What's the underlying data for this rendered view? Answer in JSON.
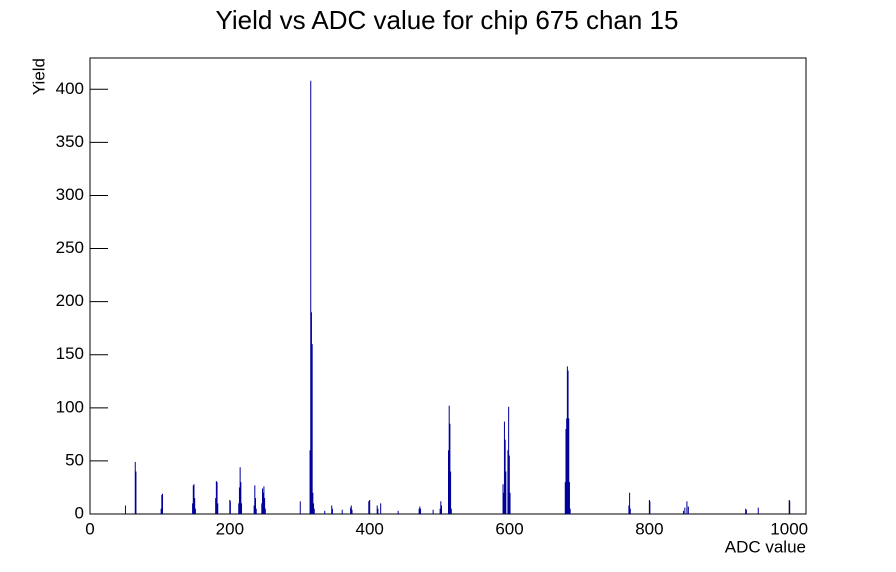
{
  "chart_data": {
    "type": "histogram",
    "title": "Yield vs ADC value for chip 675 chan 15",
    "x_label": "ADC value",
    "y_label": "Yield",
    "color": "#000099",
    "bin_width": 1,
    "x": [
      50,
      64,
      65,
      101,
      102,
      103,
      146,
      147,
      148,
      149,
      150,
      179,
      180,
      181,
      182,
      200,
      212,
      213,
      214,
      215,
      216,
      234,
      235,
      236,
      237,
      245,
      246,
      247,
      248,
      249,
      250,
      300,
      314,
      315,
      316,
      317,
      318,
      319,
      320,
      335,
      345,
      346,
      360,
      372,
      373,
      374,
      398,
      410,
      411,
      415,
      440,
      470,
      471,
      472,
      490,
      500,
      501,
      502,
      512,
      513,
      514,
      515,
      516,
      590,
      591,
      592,
      593,
      594,
      597,
      598,
      599,
      600,
      679,
      680,
      681,
      682,
      683,
      684,
      685,
      686,
      770,
      771,
      772,
      800,
      848,
      850,
      853,
      855,
      937,
      938,
      955,
      1000
    ],
    "values": [
      8,
      49,
      40,
      5,
      18,
      19,
      10,
      27,
      28,
      15,
      5,
      15,
      31,
      30,
      10,
      12,
      10,
      25,
      44,
      30,
      10,
      8,
      27,
      15,
      5,
      10,
      24,
      20,
      26,
      15,
      5,
      12,
      60,
      408,
      190,
      160,
      20,
      10,
      5,
      3,
      8,
      5,
      4,
      6,
      8,
      4,
      12,
      8,
      5,
      10,
      3,
      5,
      7,
      5,
      4,
      5,
      12,
      8,
      60,
      102,
      85,
      40,
      5,
      28,
      20,
      87,
      70,
      40,
      60,
      101,
      55,
      20,
      30,
      80,
      90,
      139,
      135,
      90,
      30,
      5,
      8,
      20,
      5,
      12,
      3,
      6,
      12,
      7,
      5,
      4,
      6,
      12
    ],
    "xlim": [
      0,
      1024
    ],
    "ylim": [
      0,
      429.45
    ],
    "xticks": [
      0,
      200,
      400,
      600,
      800,
      1000
    ],
    "yticks": [
      0,
      50,
      100,
      150,
      200,
      250,
      300,
      350,
      400
    ]
  }
}
